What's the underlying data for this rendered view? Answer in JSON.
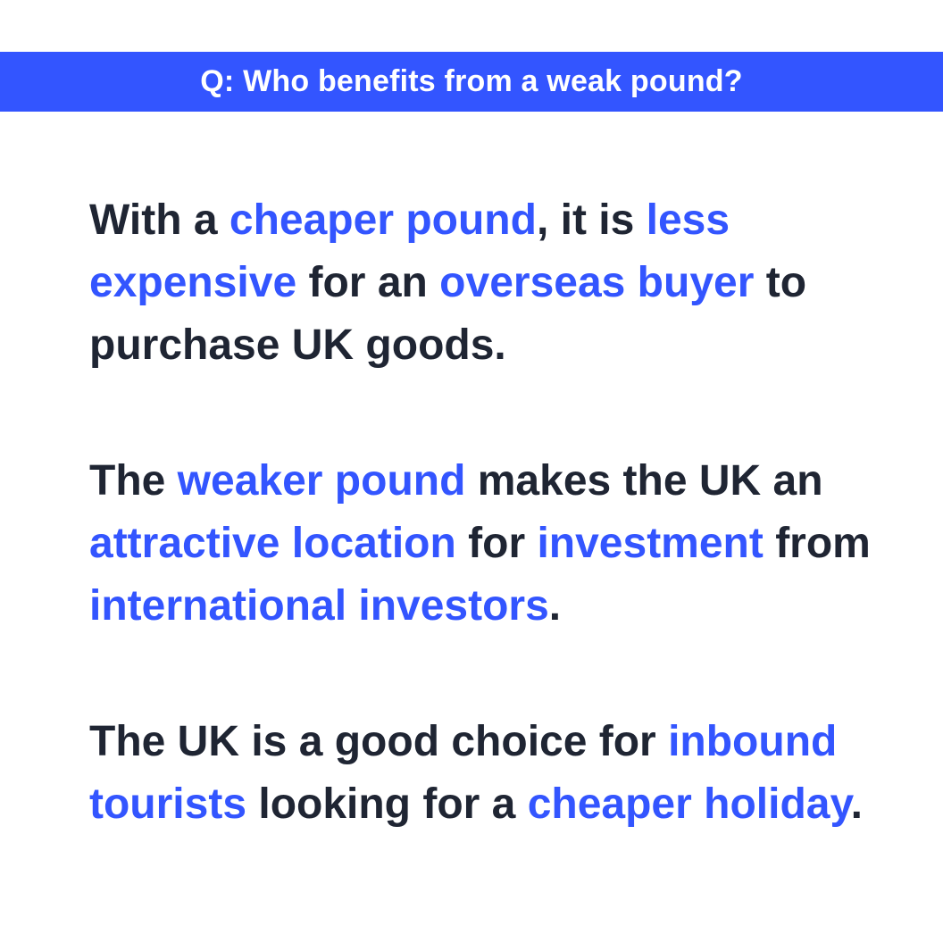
{
  "header": {
    "question": "Q: Who benefits from a weak pound?"
  },
  "colors": {
    "accent": "#3355ff",
    "text": "#1f2533",
    "background": "#ffffff"
  },
  "paragraphs": [
    {
      "segments": [
        {
          "text": "With a ",
          "highlight": false
        },
        {
          "text": "cheaper pound",
          "highlight": true
        },
        {
          "text": ", it is ",
          "highlight": false
        },
        {
          "text": "less expensive",
          "highlight": true
        },
        {
          "text": " for an ",
          "highlight": false
        },
        {
          "text": "overseas buyer",
          "highlight": true
        },
        {
          "text": " to purchase UK goods.",
          "highlight": false
        }
      ]
    },
    {
      "segments": [
        {
          "text": "The ",
          "highlight": false
        },
        {
          "text": "weaker pound",
          "highlight": true
        },
        {
          "text": " makes the UK an ",
          "highlight": false
        },
        {
          "text": "attractive location",
          "highlight": true
        },
        {
          "text": " for ",
          "highlight": false
        },
        {
          "text": "investment",
          "highlight": true
        },
        {
          "text": " from ",
          "highlight": false
        },
        {
          "text": "international investors",
          "highlight": true
        },
        {
          "text": ".",
          "highlight": false
        }
      ]
    },
    {
      "segments": [
        {
          "text": "The UK is a good choice for ",
          "highlight": false
        },
        {
          "text": "inbound tourists",
          "highlight": true
        },
        {
          "text": " looking for a ",
          "highlight": false
        },
        {
          "text": "cheaper holiday",
          "highlight": true
        },
        {
          "text": ".",
          "highlight": false
        }
      ]
    }
  ]
}
